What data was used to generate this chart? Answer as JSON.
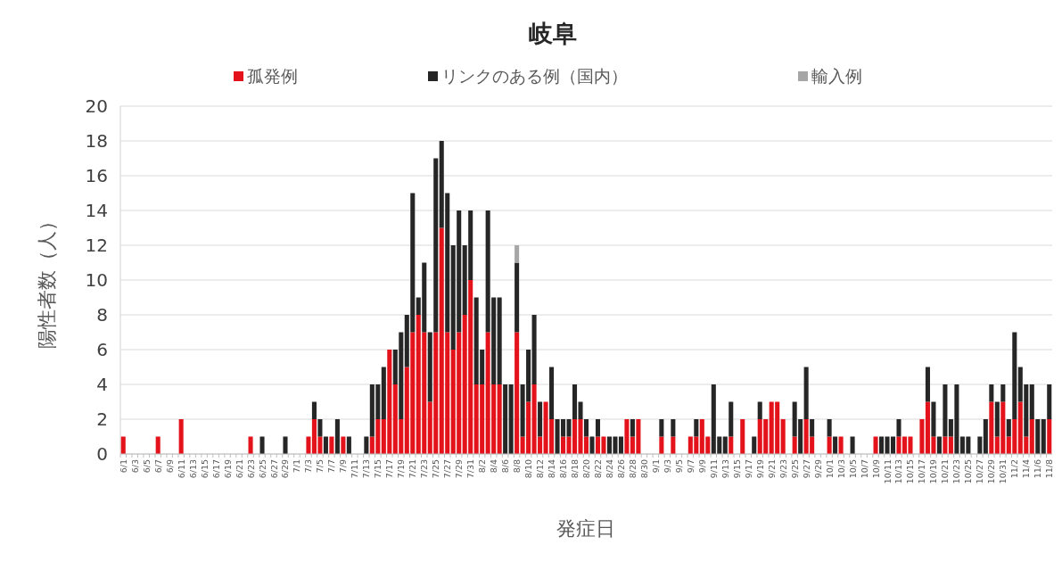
{
  "chart_data": {
    "type": "bar",
    "stacked": true,
    "title": "岐阜",
    "xlabel": "発症日",
    "ylabel": "陽性者数（人）",
    "categories": [
      "6/1",
      null,
      "6/3",
      null,
      "6/5",
      null,
      "6/7",
      null,
      "6/9",
      null,
      "6/11",
      null,
      "6/13",
      null,
      "6/15",
      null,
      "6/17",
      null,
      "6/19",
      null,
      "6/21",
      null,
      "6/23",
      null,
      "6/25",
      null,
      "6/27",
      null,
      "6/29",
      null,
      "7/1",
      null,
      "7/3",
      null,
      "7/5",
      null,
      "7/7",
      null,
      "7/9",
      null,
      "7/11",
      null,
      "7/13",
      null,
      "7/15",
      null,
      "7/17",
      null,
      "7/19",
      null,
      "7/21",
      null,
      "7/23",
      null,
      "7/25",
      null,
      "7/27",
      null,
      "7/29",
      null,
      "7/31",
      null,
      "8/2",
      null,
      "8/4",
      null,
      "8/6",
      null,
      "8/8",
      null,
      "8/10",
      null,
      "8/12",
      null,
      "8/14",
      null,
      "8/16",
      null,
      "8/18",
      null,
      "8/20",
      null,
      "8/22",
      null,
      "8/24",
      null,
      "8/26",
      null,
      "8/28",
      null,
      "8/30",
      null,
      "9/1",
      null,
      "9/3",
      null,
      "9/5",
      null,
      "9/7",
      null,
      "9/9",
      null,
      "9/11",
      null,
      "9/13",
      null,
      "9/15",
      null,
      "9/17",
      null,
      "9/19",
      null,
      "9/21",
      null,
      "9/23",
      null,
      "9/25",
      null,
      "9/27",
      null,
      "9/29",
      null,
      "10/1",
      null,
      "10/3",
      null,
      "10/5",
      null,
      "10/7",
      null,
      "10/9",
      null,
      "10/11",
      null,
      "10/13",
      null,
      "10/15",
      null,
      "10/17",
      null,
      "10/19",
      null,
      "10/21",
      null,
      "10/23",
      null,
      "10/25",
      null,
      "10/27",
      null,
      "10/29",
      null,
      "10/31",
      null,
      "11/2",
      null,
      "11/4",
      null,
      "11/6",
      null,
      "11/8"
    ],
    "series": [
      {
        "name": "孤発例",
        "color": "#e3121b",
        "values": [
          1,
          0,
          0,
          0,
          0,
          0,
          1,
          0,
          0,
          0,
          2,
          0,
          0,
          0,
          0,
          0,
          0,
          0,
          0,
          0,
          0,
          0,
          1,
          0,
          0,
          0,
          0,
          0,
          0,
          0,
          0,
          0,
          1,
          2,
          1,
          0,
          1,
          0,
          1,
          0,
          0,
          0,
          0,
          1,
          2,
          2,
          6,
          4,
          2,
          5,
          7,
          8,
          7,
          3,
          7,
          13,
          7,
          6,
          7,
          8,
          10,
          4,
          4,
          7,
          4,
          4,
          0,
          0,
          7,
          1,
          3,
          4,
          1,
          3,
          2,
          0,
          1,
          1,
          2,
          2,
          1,
          0,
          1,
          1,
          0,
          0,
          0,
          2,
          1,
          2,
          0,
          0,
          0,
          1,
          0,
          1,
          0,
          0,
          1,
          1,
          2,
          1,
          0,
          0,
          0,
          1,
          0,
          2,
          0,
          0,
          2,
          2,
          3,
          3,
          2,
          0,
          1,
          0,
          2,
          1,
          0,
          0,
          1,
          0,
          1,
          0,
          0,
          0,
          0,
          0,
          1,
          0,
          0,
          0,
          1,
          1,
          1,
          0,
          2,
          3,
          1,
          0,
          1,
          1,
          0,
          0,
          0,
          0,
          0,
          0,
          3,
          1,
          3,
          1,
          2,
          3,
          1,
          2,
          0,
          0,
          2
        ]
      },
      {
        "name": "リンクのある例（国内）",
        "color": "#262626",
        "values": [
          0,
          0,
          0,
          0,
          0,
          0,
          0,
          0,
          0,
          0,
          0,
          0,
          0,
          0,
          0,
          0,
          0,
          0,
          0,
          0,
          0,
          0,
          0,
          0,
          1,
          0,
          0,
          0,
          1,
          0,
          0,
          0,
          0,
          1,
          1,
          1,
          0,
          2,
          0,
          1,
          0,
          0,
          1,
          3,
          2,
          3,
          0,
          2,
          5,
          3,
          8,
          1,
          4,
          4,
          10,
          5,
          8,
          6,
          7,
          4,
          4,
          5,
          2,
          7,
          5,
          5,
          4,
          4,
          4,
          3,
          3,
          4,
          2,
          0,
          3,
          2,
          1,
          1,
          2,
          1,
          1,
          1,
          1,
          0,
          1,
          1,
          1,
          0,
          1,
          0,
          0,
          0,
          0,
          1,
          0,
          1,
          0,
          0,
          0,
          1,
          0,
          0,
          4,
          1,
          1,
          2,
          0,
          0,
          0,
          1,
          1,
          0,
          0,
          0,
          0,
          0,
          2,
          2,
          3,
          1,
          0,
          0,
          1,
          1,
          0,
          0,
          1,
          0,
          0,
          0,
          0,
          1,
          1,
          1,
          1,
          0,
          0,
          0,
          0,
          2,
          2,
          1,
          3,
          1,
          4,
          1,
          1,
          0,
          1,
          2,
          1,
          2,
          1,
          1,
          5,
          2,
          3,
          2,
          2,
          2,
          2
        ]
      },
      {
        "name": "輸入例",
        "color": "#a6a6a6",
        "values": [
          0,
          0,
          0,
          0,
          0,
          0,
          0,
          0,
          0,
          0,
          0,
          0,
          0,
          0,
          0,
          0,
          0,
          0,
          0,
          0,
          0,
          0,
          0,
          0,
          0,
          0,
          0,
          0,
          0,
          0,
          0,
          0,
          0,
          0,
          0,
          0,
          0,
          0,
          0,
          0,
          0,
          0,
          0,
          0,
          0,
          0,
          0,
          0,
          0,
          0,
          0,
          0,
          0,
          0,
          0,
          0,
          0,
          0,
          0,
          0,
          0,
          0,
          0,
          0,
          0,
          0,
          0,
          0,
          1,
          0,
          0,
          0,
          0,
          0,
          0,
          0,
          0,
          0,
          0,
          0,
          0,
          0,
          0,
          0,
          0,
          0,
          0,
          0,
          0,
          0,
          0,
          0,
          0,
          0,
          0,
          0,
          0,
          0,
          0,
          0,
          0,
          0,
          0,
          0,
          0,
          0,
          0,
          0,
          0,
          0,
          0,
          0,
          0,
          0,
          0,
          0,
          0,
          0,
          0,
          0,
          0,
          0,
          0,
          0,
          0,
          0,
          0,
          0,
          0,
          0,
          0,
          0,
          0,
          0,
          0,
          0,
          0,
          0,
          0,
          0,
          0,
          0,
          0,
          0,
          0,
          0,
          0,
          0,
          0,
          0,
          0,
          0,
          0,
          0,
          0,
          0,
          0,
          0,
          0,
          0,
          0
        ]
      }
    ],
    "ylim": [
      0,
      20
    ],
    "yticks": [
      0,
      2,
      4,
      6,
      8,
      10,
      12,
      14,
      16,
      18,
      20
    ],
    "grid": "y",
    "legend": "top"
  }
}
